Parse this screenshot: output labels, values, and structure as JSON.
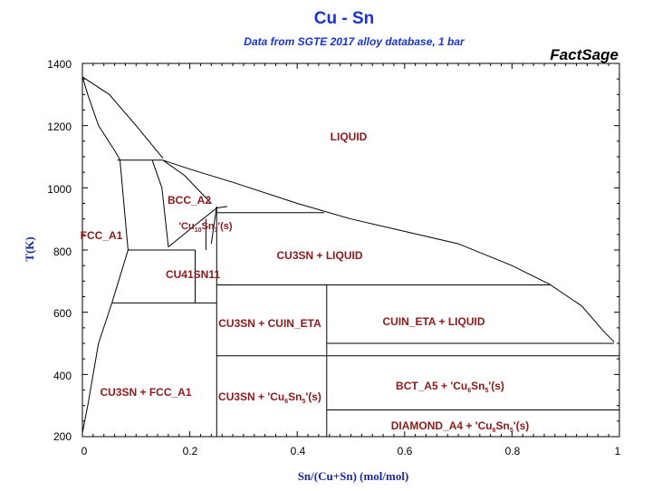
{
  "title": "Cu - Sn",
  "subtitle": "Data from SGTE 2017 alloy database, 1 bar",
  "brand": "FactSage",
  "axes": {
    "xlabel": "Sn/(Cu+Sn) (mol/mol)",
    "ylabel": "T(K)",
    "xticks": [
      "0",
      "0.2",
      "0.4",
      "0.6",
      "0.8",
      "1"
    ],
    "yticks": [
      "200",
      "400",
      "600",
      "800",
      "1000",
      "1200",
      "1400"
    ]
  },
  "regions": {
    "liquid": "LIQUID",
    "bcc": "BCC_A2",
    "fcc": "FCC_A1",
    "cu10sn3_pre": "'Cu",
    "cu10sn3_sub1": "10",
    "cu10sn3_mid": "Sn",
    "cu10sn3_sub2": "3",
    "cu10sn3_post": "'(s)",
    "cu41sn11": "CU41SN11",
    "cu3sn_liquid": "CU3SN + LIQUID",
    "cu3sn_cuin_eta": "CU3SN + CUIN_ETA",
    "cuin_eta_liquid": "CUIN_ETA + LIQUID",
    "cu3sn_fcc": "CU3SN + FCC_A1",
    "cu3sn_cu6sn5_pre": "CU3SN + 'Cu",
    "cu3sn_cu6sn5_sub1": "6",
    "cu3sn_cu6sn5_mid": "Sn",
    "cu3sn_cu6sn5_sub2": "5",
    "cu3sn_cu6sn5_post": "'(s)",
    "bct_cu6sn5_pre": "BCT_A5 + 'Cu",
    "bct_cu6sn5_sub1": "6",
    "bct_cu6sn5_mid": "Sn",
    "bct_cu6sn5_sub2": "5",
    "bct_cu6sn5_post": "'(s)",
    "diamond_cu6sn5_pre": "DIAMOND_A4 + 'Cu",
    "diamond_cu6sn5_sub1": "6",
    "diamond_cu6sn5_mid": "Sn",
    "diamond_cu6sn5_sub2": "5",
    "diamond_cu6sn5_post": "'(s)"
  },
  "chart_data": {
    "type": "diagram",
    "title": "Cu - Sn",
    "subtitle": "Data from SGTE 2017 alloy database, 1 bar",
    "xlabel": "Sn/(Cu+Sn) (mol/mol)",
    "ylabel": "T(K)",
    "xlim": [
      0,
      1
    ],
    "ylim": [
      200,
      1400
    ],
    "grid": false,
    "polylines": [
      {
        "name": "liquidus-cu-side",
        "x": [
          0,
          0.05,
          0.1,
          0.15
        ],
        "y": [
          1357,
          1300,
          1200,
          1095
        ]
      },
      {
        "name": "solidus-fcc",
        "x": [
          0,
          0.01,
          0.03,
          0.06,
          0.07
        ],
        "y": [
          1357,
          1300,
          1200,
          1120,
          1090
        ]
      },
      {
        "name": "liquidus-sn-side",
        "x": [
          0.15,
          0.2,
          0.28,
          0.4,
          0.5,
          0.6,
          0.7,
          0.8,
          0.87,
          0.93,
          0.97,
          0.99
        ],
        "y": [
          1089,
          1060,
          1018,
          950,
          900,
          860,
          820,
          750,
          690,
          620,
          540,
          505
        ]
      },
      {
        "name": "peritectic-1089",
        "x": [
          0.065,
          0.15
        ],
        "y": [
          1089,
          1089
        ]
      },
      {
        "name": "bcc-left-boundary",
        "x": [
          0.07,
          0.085
        ],
        "y": [
          1089,
          800
        ]
      },
      {
        "name": "fcc-low-boundary",
        "x": [
          0.085,
          0.055,
          0.03,
          0.01,
          0
        ],
        "y": [
          800,
          630,
          500,
          300,
          212
        ]
      },
      {
        "name": "bcc-right-boundary",
        "x": [
          0.13,
          0.148,
          0.16
        ],
        "y": [
          1089,
          1000,
          810
        ]
      },
      {
        "name": "bcc-liquid-upper",
        "x": [
          0.15,
          0.19,
          0.24
        ],
        "y": [
          1089,
          1040,
          950
        ]
      },
      {
        "name": "cu10sn3-dome",
        "x": [
          0.16,
          0.21,
          0.25,
          0.27
        ],
        "y": [
          810,
          880,
          935,
          940
        ]
      },
      {
        "name": "eutectoid-800",
        "x": [
          0.085,
          0.21
        ],
        "y": [
          800,
          800
        ]
      },
      {
        "name": "line-630",
        "x": [
          0.055,
          0.25
        ],
        "y": [
          630,
          630
        ]
      },
      {
        "name": "cu3sn-composition",
        "x": [
          0.25,
          0.25
        ],
        "y": [
          940,
          200
        ]
      },
      {
        "name": "cu41sn11-left",
        "x": [
          0.21,
          0.21
        ],
        "y": [
          630,
          800
        ]
      },
      {
        "name": "cu41sn11-right",
        "x": [
          0.23,
          0.23
        ],
        "y": [
          800,
          900
        ]
      },
      {
        "name": "cu10sn3-right",
        "x": [
          0.25,
          0.24
        ],
        "y": [
          940,
          820
        ]
      },
      {
        "name": "peritectic-920",
        "x": [
          0.25,
          0.45
        ],
        "y": [
          920,
          920
        ]
      },
      {
        "name": "peritectic-688",
        "x": [
          0.25,
          0.87
        ],
        "y": [
          688,
          688
        ]
      },
      {
        "name": "cu6sn5-composition",
        "x": [
          0.455,
          0.455
        ],
        "y": [
          688,
          200
        ]
      },
      {
        "name": "line-500",
        "x": [
          0.455,
          0.99
        ],
        "y": [
          500,
          500
        ]
      },
      {
        "name": "line-460",
        "x": [
          0.25,
          1
        ],
        "y": [
          460,
          460
        ]
      },
      {
        "name": "line-286",
        "x": [
          0.455,
          1
        ],
        "y": [
          286,
          286
        ]
      }
    ],
    "labels": [
      "LIQUID",
      "BCC_A2",
      "FCC_A1",
      "'Cu10Sn3'(s)",
      "CU41SN11",
      "CU3SN + LIQUID",
      "CU3SN + CUIN_ETA",
      "CUIN_ETA + LIQUID",
      "CU3SN + FCC_A1",
      "CU3SN + 'Cu6Sn5'(s)",
      "BCT_A5 + 'Cu6Sn5'(s)",
      "DIAMOND_A4 + 'Cu6Sn5'(s)"
    ]
  }
}
